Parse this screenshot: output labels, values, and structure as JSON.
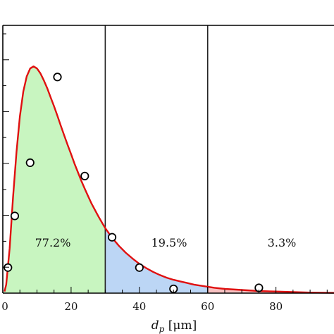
{
  "chart_data": {
    "type": "area",
    "xlabel": "d_p [μm]",
    "xlim": [
      0,
      97
    ],
    "ylim": [
      0,
      0.0503
    ],
    "x_ticks": [
      0,
      20,
      40,
      60,
      80
    ],
    "x_tick_labels": [
      "0",
      "20",
      "40",
      "60",
      "80"
    ],
    "y_ticks_count": 10,
    "grid": false,
    "boundaries": [
      30,
      60
    ],
    "regions": [
      {
        "label": "77.2%",
        "from": 0,
        "to": 30,
        "color": "#c8f5c0"
      },
      {
        "label": "19.5%",
        "from": 30,
        "to": 60,
        "color": "#bcd6f5"
      },
      {
        "label": "3.3%",
        "from": 60,
        "to": 97,
        "color": "#f8c2c2"
      }
    ],
    "curve": {
      "color": "#e01010",
      "x": [
        0.5,
        1,
        2,
        3,
        4,
        5,
        6,
        7,
        8,
        9,
        10,
        11,
        12,
        13,
        14,
        15,
        16,
        17,
        18,
        19,
        20,
        21,
        22,
        23,
        24,
        25,
        26,
        27,
        28,
        29,
        30,
        32,
        34,
        36,
        38,
        40,
        42,
        44,
        46,
        48,
        50,
        52,
        54,
        56,
        58,
        60,
        62,
        65,
        70,
        75,
        80,
        85,
        90,
        97
      ],
      "y": [
        0.0003,
        0.0016,
        0.0084,
        0.018,
        0.0265,
        0.0332,
        0.0379,
        0.0407,
        0.0422,
        0.0426,
        0.0422,
        0.0413,
        0.04,
        0.0385,
        0.0368,
        0.0351,
        0.0333,
        0.0314,
        0.0296,
        0.0278,
        0.0261,
        0.0243,
        0.0227,
        0.0211,
        0.0196,
        0.0182,
        0.0168,
        0.0156,
        0.0144,
        0.0133,
        0.0122,
        0.0104,
        0.0089,
        0.0076,
        0.0065,
        0.0055,
        0.0047,
        0.004,
        0.0034,
        0.0029,
        0.0025,
        0.0022,
        0.0019,
        0.0016,
        0.0014,
        0.0012,
        0.001,
        0.0008,
        0.0006,
        0.0004,
        0.0003,
        0.0002,
        0.0001,
        5e-05
      ]
    },
    "points": {
      "x": [
        1.5,
        3.5,
        8,
        16,
        24,
        32,
        40,
        50,
        75
      ],
      "y": [
        0.0048,
        0.0145,
        0.0245,
        0.0406,
        0.022,
        0.0105,
        0.0048,
        0.0008,
        0.001
      ]
    }
  }
}
